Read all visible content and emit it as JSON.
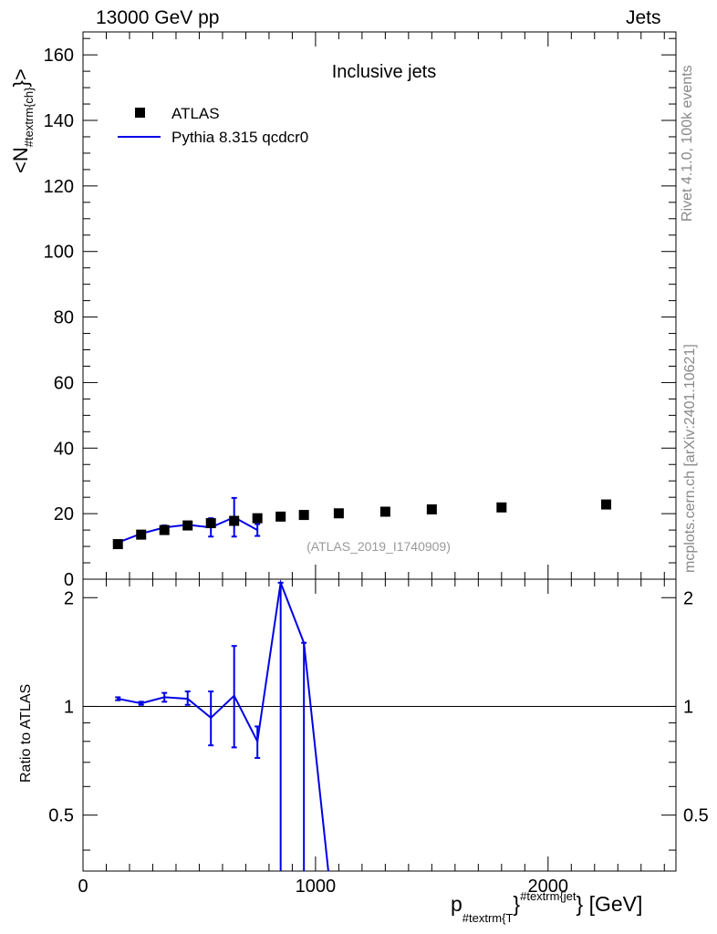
{
  "header": {
    "left": "13000 GeV pp",
    "right": "Jets"
  },
  "side_labels": {
    "rivet": "Rivet 4.1.0,  100k events",
    "mcplots": "mcplots.cern.ch [arXiv:2401.10621]"
  },
  "chart_data": [
    {
      "type": "scatter",
      "panel": "main",
      "title": "Inclusive jets",
      "ylabel_main": "<N",
      "ylabel_sub": "#textrm{ch}",
      "ylabel_close": "}>",
      "watermark": "(ATLAS_2019_I1740909)",
      "xlim": [
        0,
        2550
      ],
      "ylim": [
        0,
        167
      ],
      "yticks": [
        0,
        20,
        40,
        60,
        80,
        100,
        120,
        140,
        160
      ],
      "legend_placement": "top-left",
      "series": [
        {
          "name": "ATLAS",
          "color": "#000000",
          "marker": "square",
          "x": [
            150,
            250,
            350,
            450,
            550,
            650,
            750,
            850,
            950,
            1100,
            1300,
            1500,
            1800,
            2250
          ],
          "y": [
            10.7,
            13.6,
            15.0,
            16.4,
            17.1,
            17.8,
            18.6,
            19.1,
            19.6,
            20.1,
            20.6,
            21.3,
            21.9,
            22.8
          ]
        },
        {
          "name": "Pythia 8.315 qcdcr0",
          "color": "#0000e6",
          "marker": "line",
          "x": [
            150,
            250,
            350,
            450,
            550,
            650,
            750
          ],
          "y": [
            11.2,
            13.9,
            15.8,
            16.6,
            15.8,
            18.9,
            15.0
          ],
          "yerr": [
            0.3,
            0.3,
            0.6,
            0.8,
            2.8,
            5.9,
            1.8
          ]
        }
      ]
    },
    {
      "type": "line",
      "panel": "ratio",
      "ylabel": "Ratio to ATLAS",
      "xlabel_main": "p",
      "xlabel_sub": "#textrm{T",
      "xlabel_sup": "#textrm{jet",
      "xlabel_close": "} [GeV]",
      "xlim": [
        0,
        2550
      ],
      "ylim": [
        0.35,
        2.25
      ],
      "yscale": "log",
      "yticks": [
        0.5,
        1,
        2
      ],
      "xticks": [
        0,
        1000,
        2000
      ],
      "reference_line": 1,
      "series": [
        {
          "name": "Pythia 8.315 qcdcr0",
          "color": "#0000e6",
          "x": [
            150,
            250,
            350,
            450,
            550,
            650,
            750,
            850,
            950,
            1055
          ],
          "y": [
            1.05,
            1.02,
            1.06,
            1.05,
            0.93,
            1.07,
            0.8,
            2.2,
            1.5,
            0.35
          ],
          "yerr_low": [
            0.01,
            0.01,
            0.03,
            0.04,
            0.15,
            0.3,
            0.08,
            1.9,
            1.2,
            0
          ],
          "yerr_high": [
            0.01,
            0.01,
            0.03,
            0.05,
            0.17,
            0.4,
            0.08,
            0,
            0,
            0
          ]
        }
      ]
    }
  ]
}
